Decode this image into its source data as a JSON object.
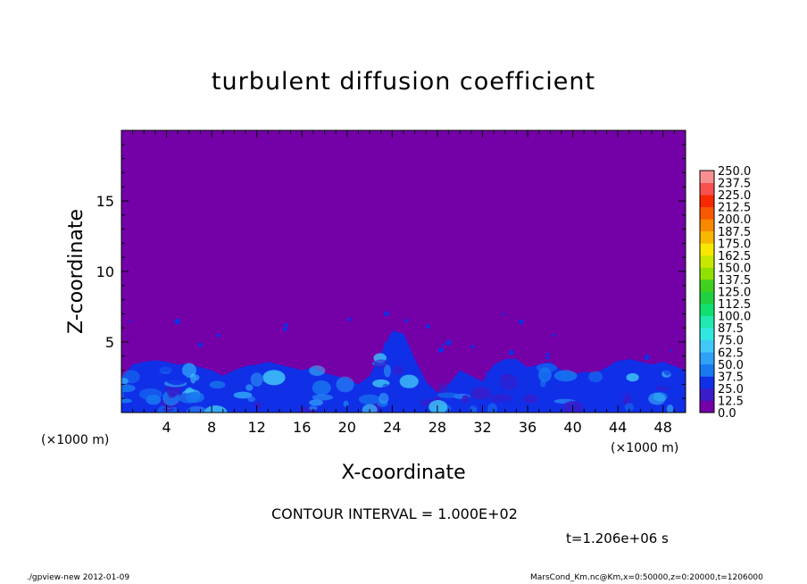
{
  "title": "turbulent diffusion coefficient",
  "contour_text": "CONTOUR INTERVAL = 1.000E+02",
  "time_text": "t=1.206e+06 s",
  "footer_left": "./gpview-new   2012-01-09",
  "footer_right": "MarsCond_Km.nc@Km,x=0:50000,z=0:20000,t=1206000",
  "colors": {
    "background_field": "#7400a8",
    "palette": [
      "#7400a8",
      "#3a1cc8",
      "#1030e8",
      "#1878f0",
      "#30a0f8",
      "#40c8f8",
      "#30e8e0",
      "#20e8b0",
      "#10e070",
      "#20d040",
      "#40d020",
      "#90e000",
      "#c8e800",
      "#f8e800",
      "#f8b800",
      "#f88800",
      "#f85800",
      "#f82800",
      "#f85050",
      "#f89090"
    ]
  },
  "chart_data": {
    "type": "heatmap",
    "title": "turbulent diffusion coefficient",
    "xlabel": "X-coordinate",
    "ylabel": "Z-coordinate",
    "x_unit_label": "(×1000 m)",
    "y_unit_label": "(×1000 m)",
    "xlim": [
      0,
      50
    ],
    "ylim": [
      0,
      20
    ],
    "x_ticks": [
      4,
      8,
      12,
      16,
      20,
      24,
      28,
      32,
      36,
      40,
      44,
      48
    ],
    "y_ticks": [
      5,
      10,
      15
    ],
    "colorbar_levels": [
      "250.0",
      "237.5",
      "225.0",
      "212.5",
      "200.0",
      "187.5",
      "175.0",
      "162.5",
      "150.0",
      "137.5",
      "125.0",
      "112.5",
      "100.0",
      "87.5",
      "75.0",
      "62.5",
      "50.0",
      "37.5",
      "25.0",
      "12.5",
      "0.0"
    ],
    "contour_interval": 100,
    "boundary_layer_height_km": [
      [
        0,
        2.4
      ],
      [
        1,
        3.4
      ],
      [
        2,
        3.6
      ],
      [
        3,
        3.7
      ],
      [
        4,
        3.6
      ],
      [
        5,
        3.4
      ],
      [
        6,
        3.5
      ],
      [
        7,
        3.2
      ],
      [
        8,
        3.0
      ],
      [
        9,
        2.6
      ],
      [
        10,
        3.0
      ],
      [
        11,
        3.3
      ],
      [
        12,
        3.4
      ],
      [
        13,
        3.6
      ],
      [
        14,
        3.4
      ],
      [
        15,
        3.2
      ],
      [
        16,
        3.0
      ],
      [
        17,
        3.2
      ],
      [
        18,
        2.8
      ],
      [
        19,
        2.6
      ],
      [
        20,
        2.4
      ],
      [
        21,
        2.0
      ],
      [
        22,
        2.6
      ],
      [
        23,
        4.2
      ],
      [
        24,
        5.8
      ],
      [
        25,
        5.6
      ],
      [
        26,
        3.8
      ],
      [
        27,
        2.2
      ],
      [
        28,
        1.4
      ],
      [
        29,
        2.0
      ],
      [
        30,
        3.0
      ],
      [
        31,
        2.6
      ],
      [
        32,
        2.2
      ],
      [
        33,
        3.4
      ],
      [
        34,
        3.8
      ],
      [
        35,
        3.8
      ],
      [
        36,
        3.2
      ],
      [
        37,
        3.4
      ],
      [
        38,
        3.6
      ],
      [
        39,
        3.0
      ],
      [
        40,
        2.7
      ],
      [
        41,
        2.9
      ],
      [
        42,
        2.8
      ],
      [
        43,
        3.2
      ],
      [
        44,
        3.6
      ],
      [
        45,
        3.8
      ],
      [
        46,
        3.6
      ],
      [
        47,
        3.4
      ],
      [
        48,
        3.6
      ],
      [
        49,
        3.3
      ],
      [
        50,
        3.0
      ]
    ]
  }
}
